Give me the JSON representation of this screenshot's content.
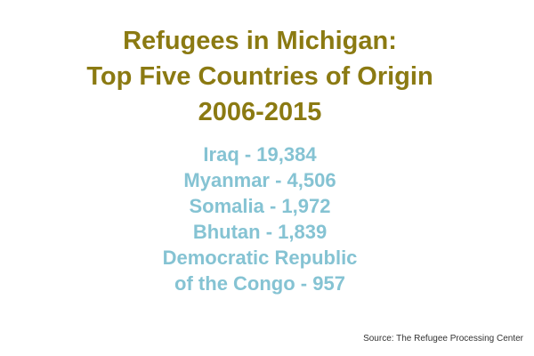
{
  "title": {
    "line1": "Refugees in Michigan:",
    "line2": "Top Five Countries of Origin",
    "line3": "2006-2015"
  },
  "countries": [
    "Iraq - 19,384",
    "Myanmar - 4,506",
    "Somalia - 1,972",
    "Bhutan - 1,839",
    "Democratic Republic",
    "of the Congo - 957"
  ],
  "source": "Source: The Refugee Processing Center",
  "colors": {
    "title": "#8b7a12",
    "list": "#85c3d3",
    "source": "#333333",
    "background": "#ffffff"
  }
}
